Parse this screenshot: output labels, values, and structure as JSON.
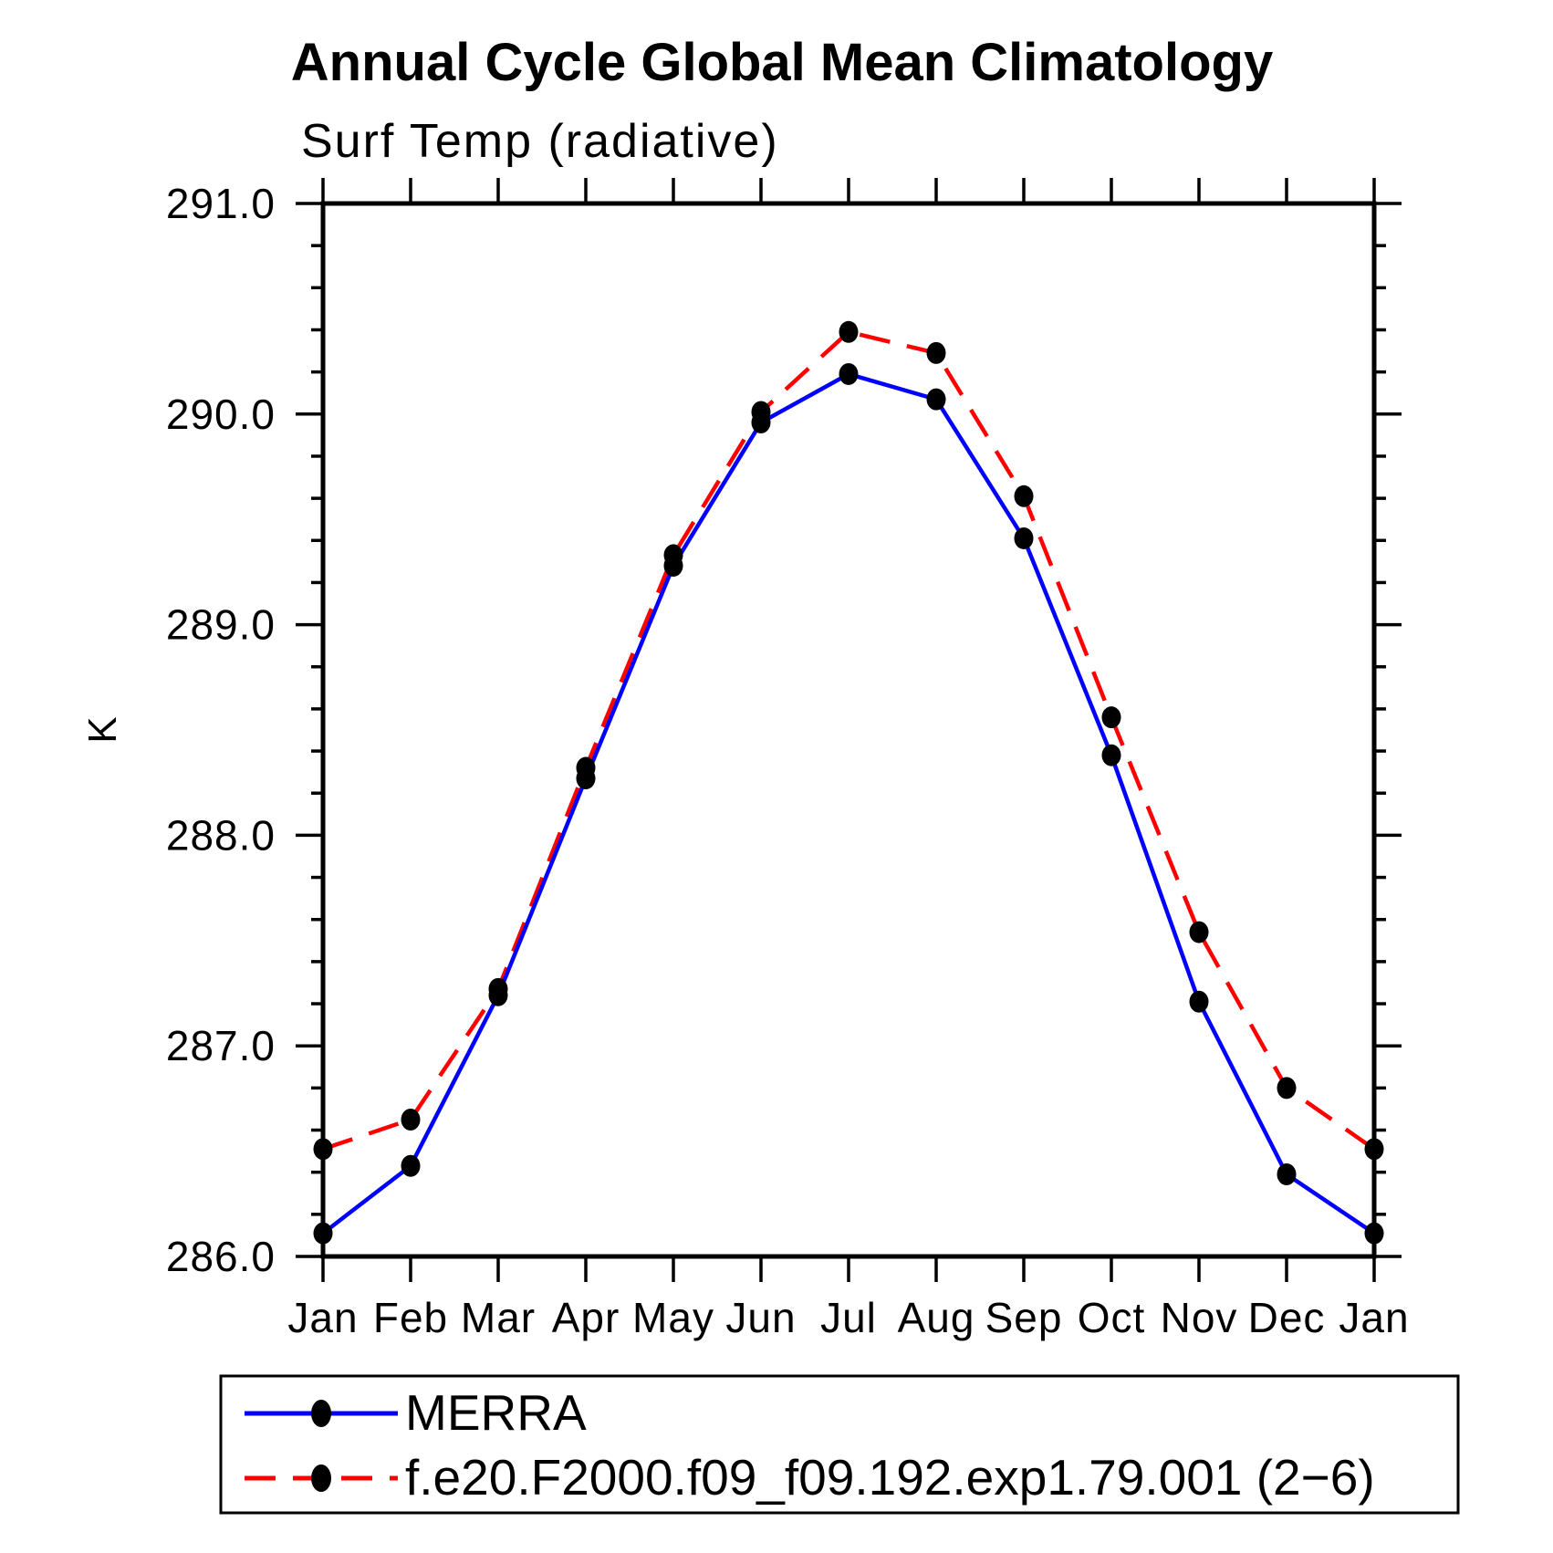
{
  "chart_data": {
    "type": "line",
    "title": "Annual Cycle Global Mean Climatology",
    "subtitle": "Surf Temp (radiative)",
    "ylabel": "K",
    "xlabel": "",
    "x_categories": [
      "Jan",
      "Feb",
      "Mar",
      "Apr",
      "May",
      "Jun",
      "Jul",
      "Aug",
      "Sep",
      "Oct",
      "Nov",
      "Dec",
      "Jan"
    ],
    "ylim": [
      286.0,
      291.0
    ],
    "y_major_tick_labels": [
      "286.0",
      "287.0",
      "288.0",
      "289.0",
      "290.0",
      "291.0"
    ],
    "y_major_step": 1.0,
    "y_minor_step": 0.2,
    "grid": false,
    "legend_position": "below-left",
    "axis_color": "#000000",
    "series": [
      {
        "name": "MERRA",
        "color": "#0000ff",
        "line_style": "solid",
        "marker": "filled-circle",
        "marker_color": "#000000",
        "values": [
          286.11,
          286.43,
          287.24,
          288.27,
          289.28,
          289.96,
          290.19,
          290.07,
          289.41,
          288.38,
          287.21,
          286.39,
          286.11
        ]
      },
      {
        "name": "f.e20.F2000.f09_f09.192.exp1.79.001 (2−6)",
        "color": "#ff0000",
        "line_style": "dashed",
        "marker": "filled-circle",
        "marker_color": "#000000",
        "values": [
          286.51,
          286.65,
          287.27,
          288.32,
          289.33,
          290.01,
          290.39,
          290.29,
          289.61,
          288.56,
          287.54,
          286.8,
          286.51
        ]
      }
    ]
  }
}
